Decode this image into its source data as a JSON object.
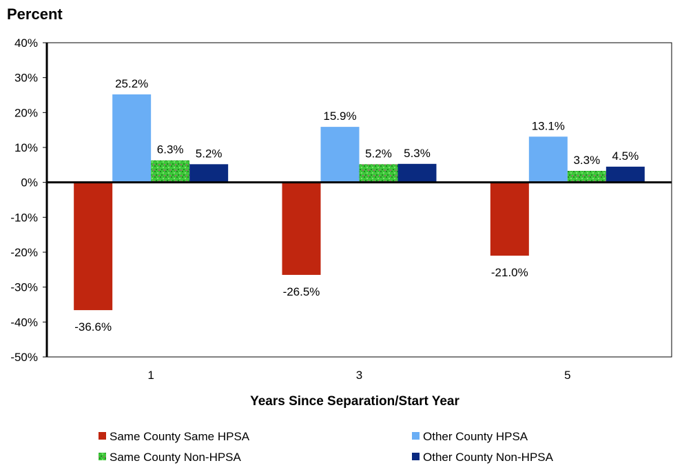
{
  "chart_data": {
    "type": "bar",
    "title": "Percent",
    "xlabel": "Years Since Separation/Start Year",
    "ylabel": "Percent",
    "categories": [
      "1",
      "3",
      "5"
    ],
    "ylim": [
      -50,
      40
    ],
    "yticks": [
      40,
      30,
      20,
      10,
      0,
      -10,
      -20,
      -30,
      -40,
      -50
    ],
    "ytick_labels": [
      "40%",
      "30%",
      "20%",
      "10%",
      "0%",
      "-10%",
      "-20%",
      "-30%",
      "-40%",
      "-50%"
    ],
    "legend_position": "bottom",
    "series": [
      {
        "name": "Same County Same HPSA",
        "color": "#c0260f",
        "values": [
          -36.6,
          -26.5,
          -21.0
        ],
        "labels": [
          "-36.6%",
          "-26.5%",
          "-21.0%"
        ]
      },
      {
        "name": "Other County HPSA",
        "color": "#6aaef5",
        "values": [
          25.2,
          15.9,
          13.1
        ],
        "labels": [
          "25.2%",
          "15.9%",
          "13.1%"
        ]
      },
      {
        "name": "Same County Non-HPSA",
        "color": "#3ec83a",
        "pattern": "speckled",
        "values": [
          6.3,
          5.2,
          3.3
        ],
        "labels": [
          "6.3%",
          "5.2%",
          "3.3%"
        ]
      },
      {
        "name": "Other County Non-HPSA",
        "color": "#0a2a80",
        "values": [
          5.2,
          5.3,
          4.5
        ],
        "labels": [
          "5.2%",
          "5.3%",
          "4.5%"
        ]
      }
    ]
  }
}
